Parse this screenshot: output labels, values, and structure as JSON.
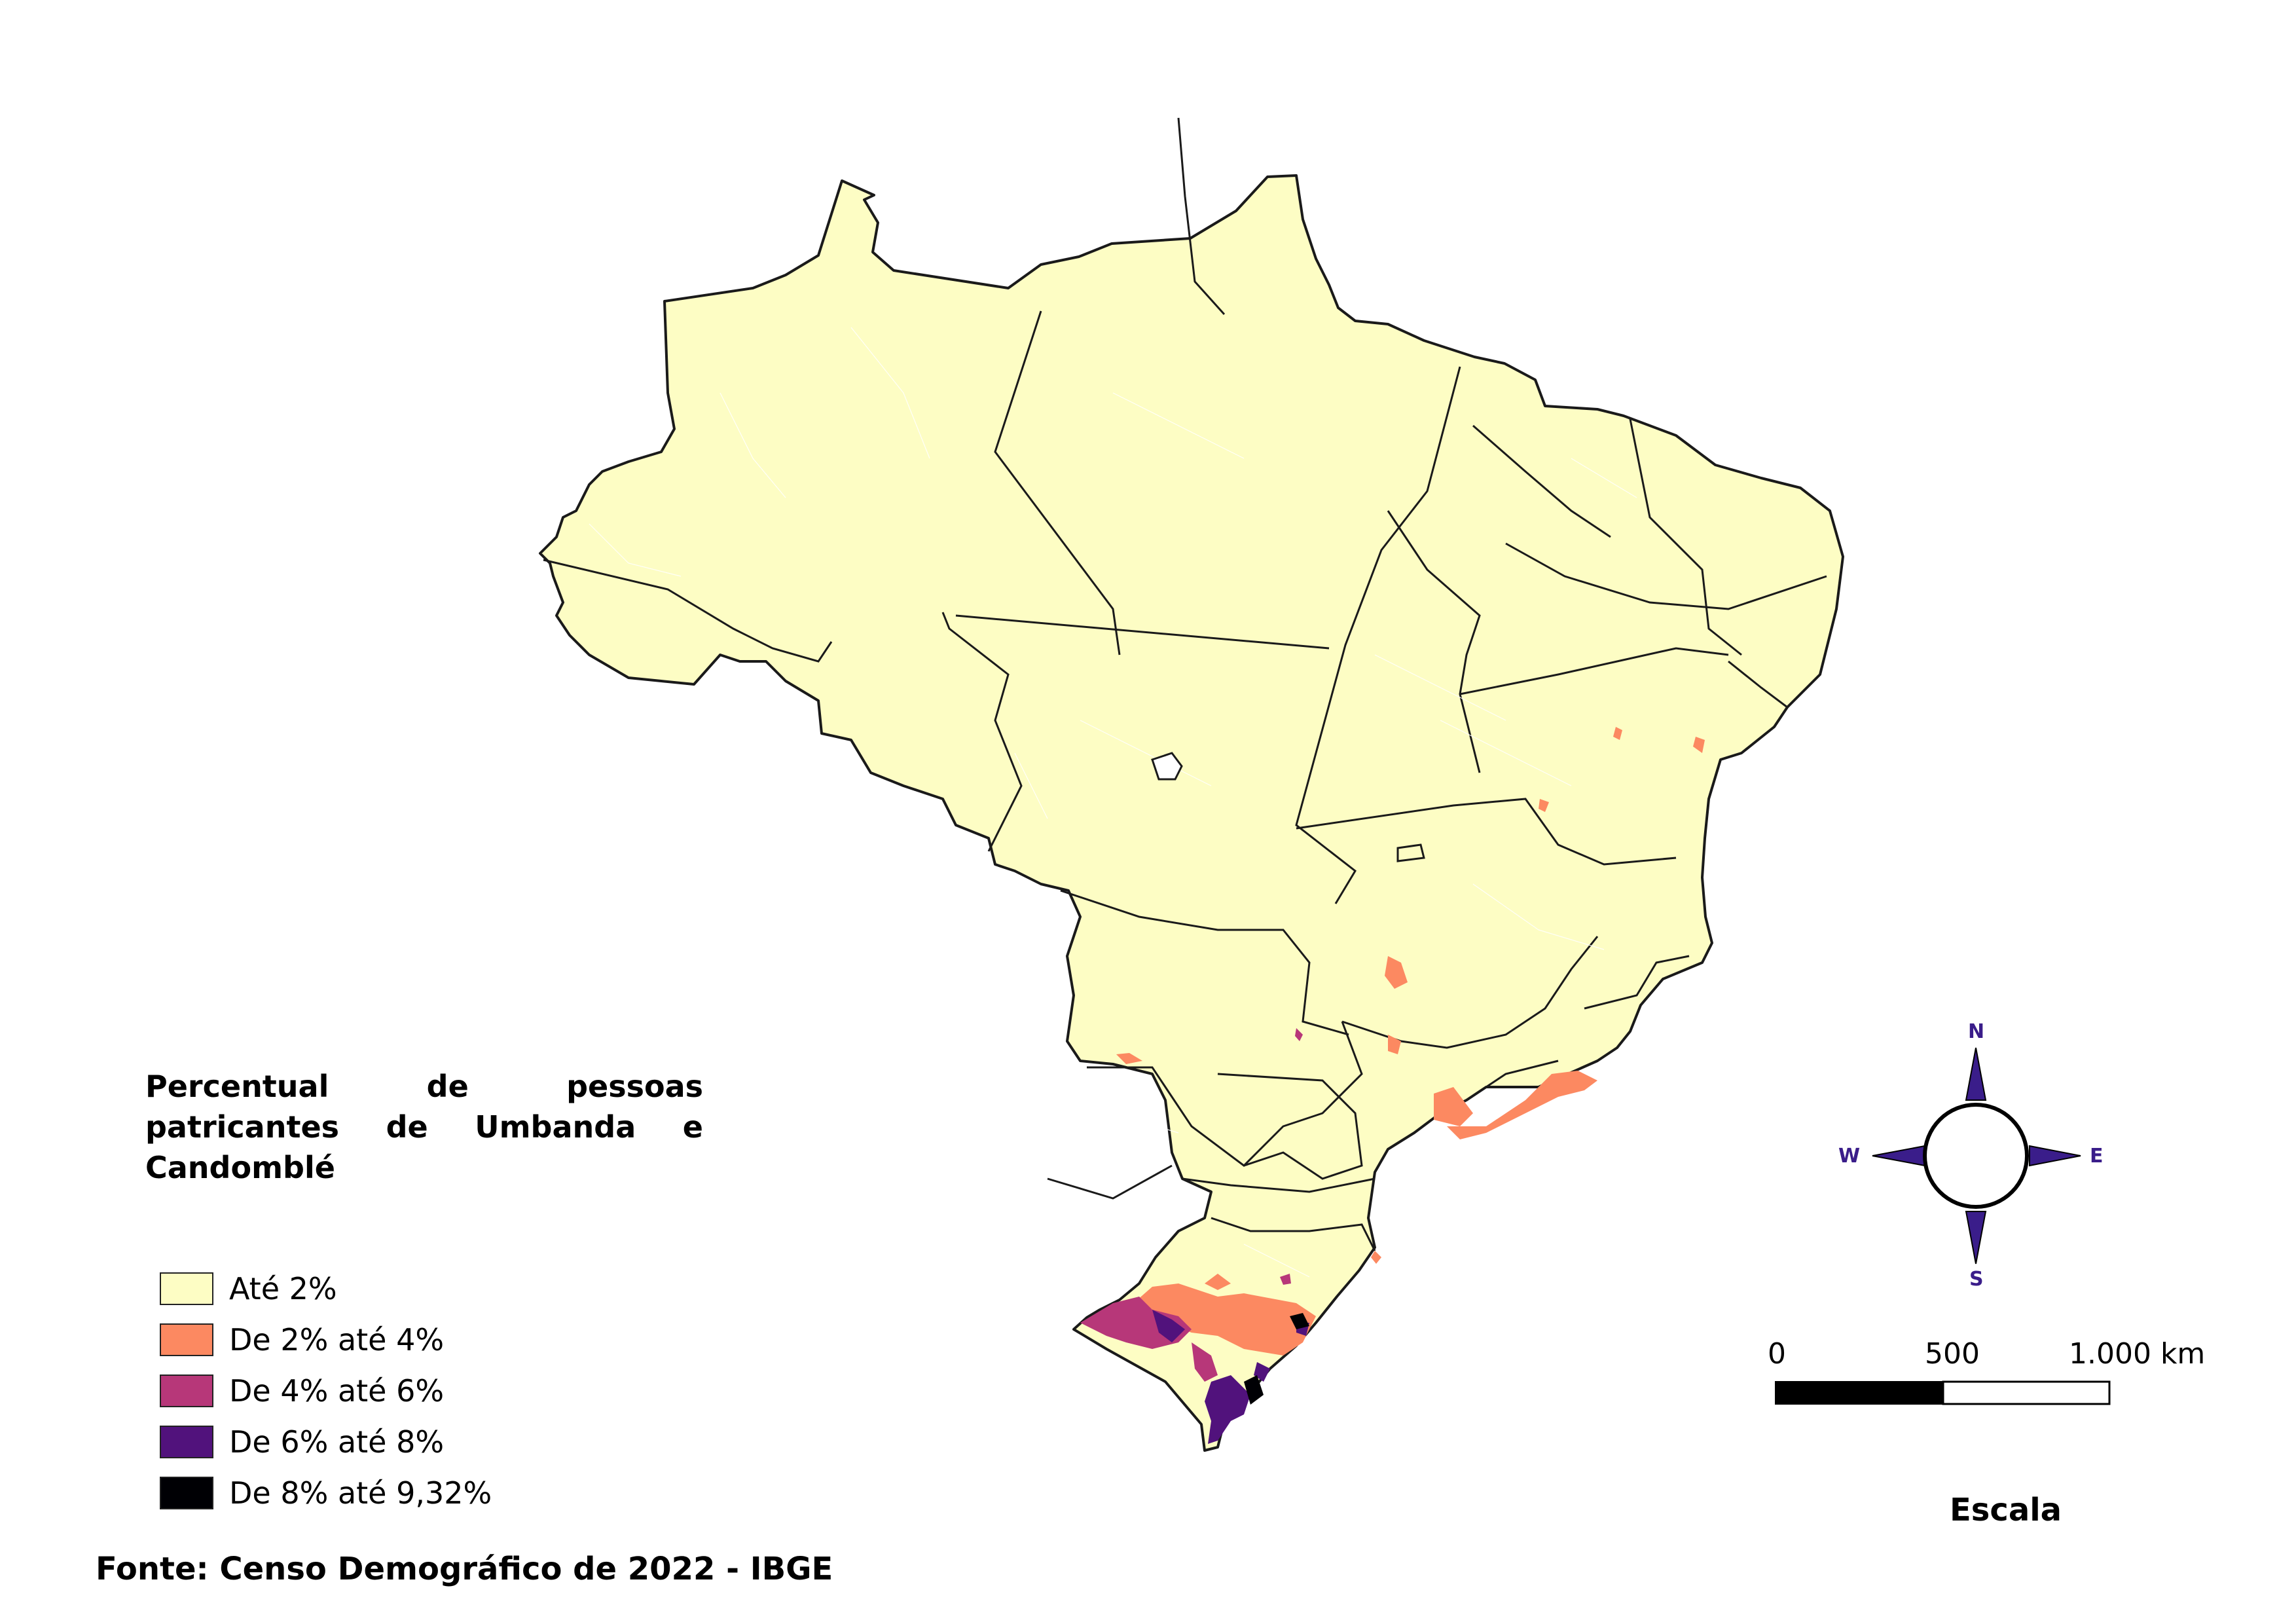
{
  "legend": {
    "title": "Percentual de pessoas patricantes de Umbanda e Candomblé",
    "items": [
      {
        "label": "Até 2%",
        "color": "#fdfdc4"
      },
      {
        "label": "De 2% até 4%",
        "color": "#fc8961"
      },
      {
        "label": "De 4% até 6%",
        "color": "#b73779"
      },
      {
        "label": "De 6% até 8%",
        "color": "#51127c"
      },
      {
        "label": "De 8% até 9,32%",
        "color": "#000004"
      }
    ]
  },
  "source": "Fonte: Censo Demográfico de 2022 - IBGE",
  "scale": {
    "tick_0": "0",
    "tick_mid": "500",
    "tick_max": "1.000 km",
    "title": "Escala"
  },
  "compass": {
    "n": "N",
    "s": "S",
    "e": "E",
    "w": "W",
    "color": "#3a1d8a"
  },
  "colors": {
    "base": "#fdfdc4",
    "border": "#1a1a1a"
  }
}
